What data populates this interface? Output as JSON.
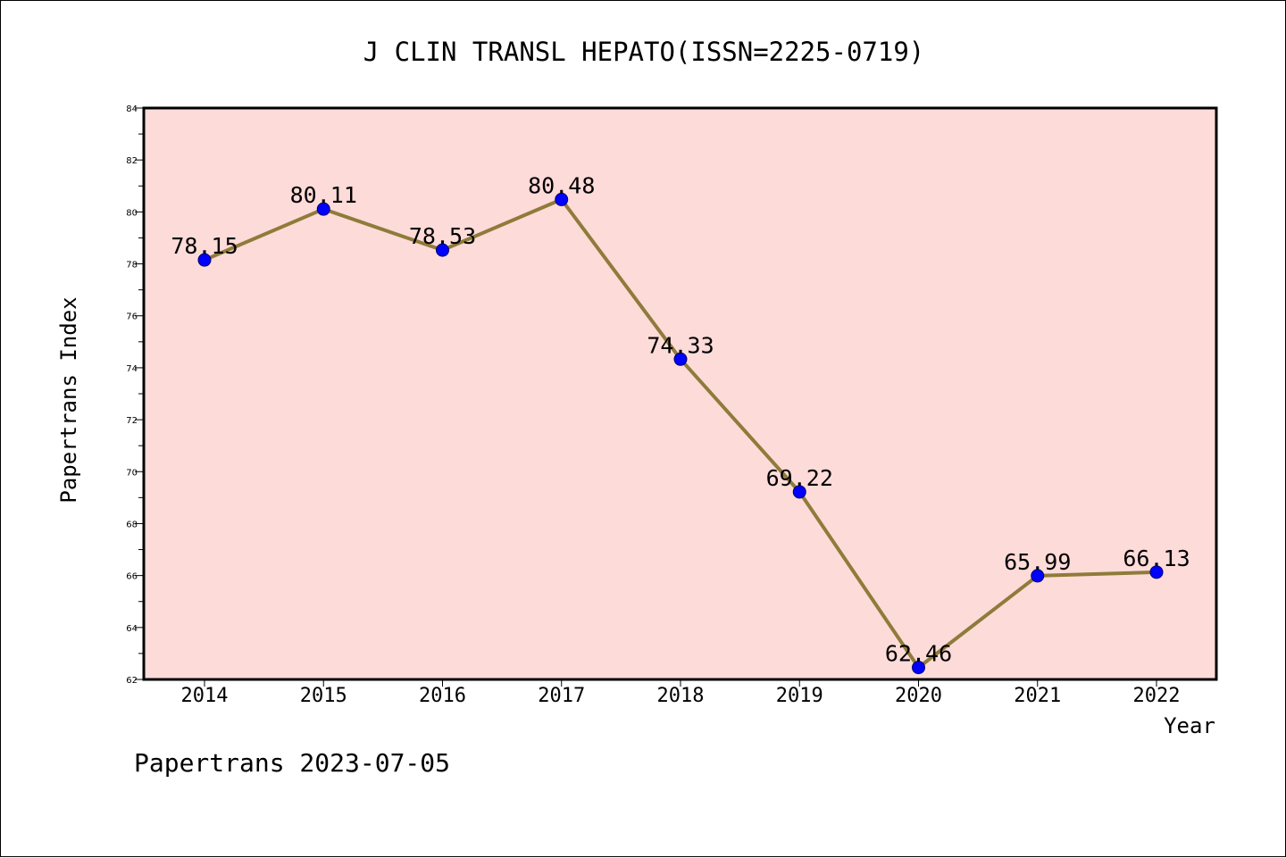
{
  "chart_data": {
    "type": "line",
    "title": "J CLIN TRANSL HEPATO(ISSN=2225-0719)",
    "xlabel": "Year",
    "ylabel": "Papertrans Index",
    "categories": [
      "2014",
      "2015",
      "2016",
      "2017",
      "2018",
      "2019",
      "2020",
      "2021",
      "2022"
    ],
    "series": [
      {
        "values": [
          78.15,
          80.11,
          78.53,
          80.48,
          74.33,
          69.22,
          62.46,
          65.99,
          66.13
        ],
        "labels": [
          "78.15",
          "80.11",
          "78.53",
          "80.48",
          "74.33",
          "69.22",
          "62.46",
          "65.99",
          "66.13"
        ]
      }
    ],
    "ylim": [
      62,
      84
    ],
    "yticks": [
      "62",
      "64",
      "66",
      "68",
      "70",
      "72",
      "74",
      "76",
      "78",
      "80",
      "82",
      "84"
    ],
    "grid": false,
    "legend": "none"
  },
  "footer": "Papertrans 2023-07-05",
  "colors": {
    "plot_background": "#fddbd9",
    "line": "#8f7b3a",
    "marker": "#0000ff",
    "marker_edge": "#00006a",
    "axis": "#000000"
  }
}
